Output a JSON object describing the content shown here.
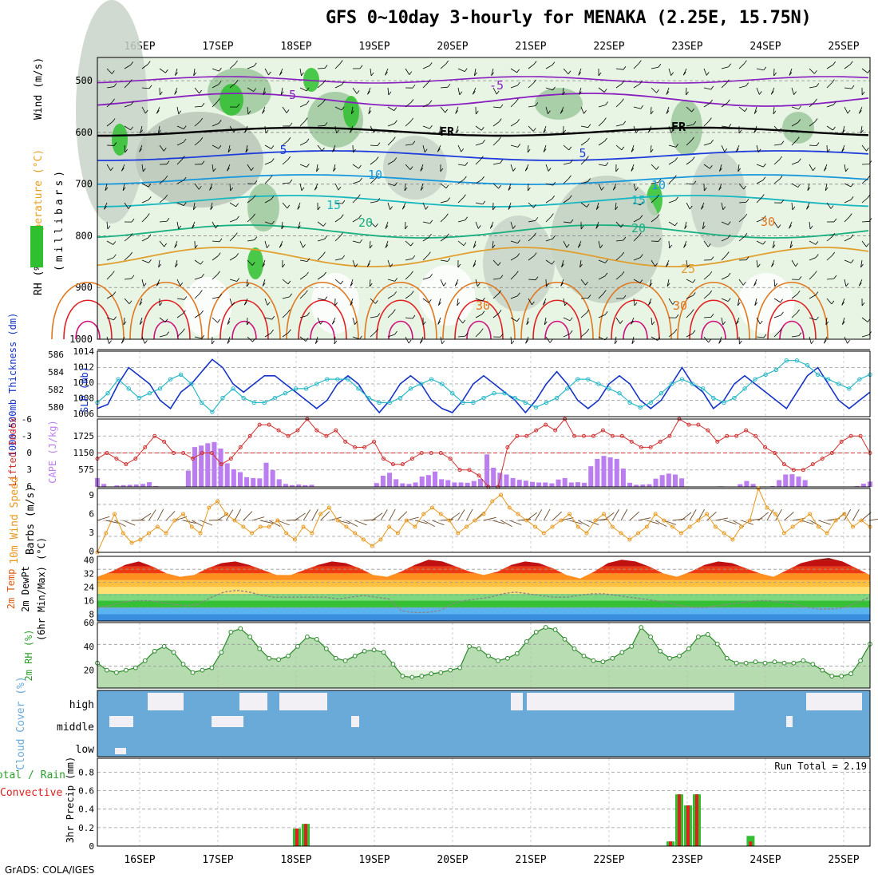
{
  "title": "GFS 0~10day 3-hourly for MENAKA (2.25E, 15.75N)",
  "credit": "GrADS: COLA/IGES",
  "colors": {
    "rh_green": "#2ec02e",
    "rh_light": "#e8f4e4",
    "grey_band": "#b8c6b8",
    "cloud_blue": "#6aaad8",
    "cloud_white": "#f2f0f4",
    "cape_purple": "#bb7ef0",
    "slp_blue": "#1432c8",
    "thick_cyan": "#28b8c8",
    "li_red": "#d03030",
    "wind_orange": "#e8981c",
    "precip_green": "#30c030",
    "precip_red": "#e02020",
    "rh2m_green": "#70b870"
  },
  "chart_data": {
    "type": "meteogram",
    "x_dates": [
      "16SEP",
      "17SEP",
      "18SEP",
      "19SEP",
      "20SEP",
      "21SEP",
      "22SEP",
      "23SEP",
      "24SEP",
      "25SEP"
    ],
    "panels": [
      {
        "name": "cross-section",
        "ylabels": [
          "Wind (m/s)",
          "Temperature (°C)",
          "RH (%)"
        ],
        "yaxis_label": "(millibars)",
        "yticks": [
          500,
          600,
          700,
          800,
          900,
          1000
        ],
        "contour_labels": [
          "-5",
          "-5",
          "FR",
          "FR",
          "5",
          "5",
          "10",
          "10",
          "15",
          "15",
          "20",
          "20",
          "25",
          "30",
          "30",
          "30"
        ]
      },
      {
        "name": "thickness-slp",
        "ylabels": [
          "1000-500mb Thickness (dm)",
          "SLP (mb)"
        ],
        "thickness_ticks": [
          "586",
          "584",
          "582",
          "580"
        ],
        "slp_ticks": [
          "1014",
          "1012",
          "1010",
          "1008",
          "1006"
        ],
        "slp": [
          1007,
          1007.5,
          1010,
          1012,
          1011,
          1010,
          1008,
          1007,
          1009,
          1010,
          1011.5,
          1013,
          1012,
          1010,
          1009,
          1010,
          1011,
          1011,
          1010,
          1009,
          1008,
          1007,
          1008,
          1010,
          1011,
          1010,
          1008,
          1006.5,
          1008,
          1010,
          1011,
          1010,
          1008,
          1007,
          1006.5,
          1008,
          1010,
          1011,
          1010,
          1009,
          1008,
          1006.5,
          1008,
          1010,
          1011.5,
          1010,
          1008,
          1007,
          1008,
          1010,
          1011,
          1010,
          1008,
          1007,
          1008,
          1010,
          1012,
          1010,
          1009,
          1007,
          1008,
          1010,
          1011,
          1010,
          1009,
          1008,
          1007,
          1009,
          1011,
          1012,
          1010,
          1008,
          1007,
          1008,
          1009
        ],
        "thickness": [
          580.5,
          581.5,
          583,
          582,
          581,
          581.5,
          582,
          583,
          583.5,
          582.5,
          580.5,
          579.5,
          581,
          582,
          581,
          580.5,
          580.5,
          581,
          581.5,
          582,
          582,
          582.5,
          583,
          583,
          583,
          582,
          581,
          580.5,
          580.5,
          581,
          582,
          582.5,
          583,
          582.5,
          581.5,
          580.5,
          580.5,
          581,
          581.5,
          581.5,
          581,
          580.5,
          580,
          580.5,
          581,
          582,
          583,
          583,
          582.5,
          582,
          581.5,
          580.5,
          580,
          580.5,
          581.5,
          582.5,
          583,
          582.5,
          582,
          581,
          580.5,
          581,
          582,
          583,
          583.5,
          584,
          585,
          585,
          584.5,
          583.5,
          583,
          582.5,
          582,
          583,
          583.5
        ]
      },
      {
        "name": "cape-li",
        "ylabels": [
          "Lifted Index",
          "CAPE (J/kg)"
        ],
        "li_ticks": [
          "-6",
          "-3",
          "0",
          "3",
          "6"
        ],
        "cape_ticks": [
          "1725",
          "1150",
          "575"
        ],
        "cape": [
          300,
          100,
          0,
          50,
          60,
          70,
          80,
          100,
          160,
          30,
          0,
          0,
          0,
          0,
          550,
          1350,
          1400,
          1480,
          1520,
          1300,
          800,
          600,
          500,
          330,
          300,
          290,
          820,
          570,
          260,
          100,
          60,
          80,
          60,
          70,
          0,
          0,
          0,
          0,
          0,
          0,
          0,
          0,
          0,
          130,
          380,
          480,
          260,
          120,
          100,
          150,
          350,
          400,
          520,
          260,
          230,
          150,
          150,
          140,
          200,
          270,
          1100,
          650,
          480,
          420,
          300,
          240,
          210,
          170,
          150,
          150,
          120,
          250,
          300,
          150,
          160,
          140,
          700,
          950,
          1050,
          1000,
          950,
          620,
          140,
          70,
          80,
          90,
          280,
          400,
          450,
          420,
          290,
          10,
          0,
          0,
          0,
          0,
          20,
          0,
          10,
          90,
          200,
          100,
          0,
          0,
          30,
          230,
          420,
          430,
          350,
          230,
          0,
          0,
          0,
          0,
          0,
          0,
          0,
          30,
          110,
          180
        ],
        "li": [
          1,
          0,
          1,
          2,
          1,
          -1,
          -3,
          -2,
          0,
          0,
          1,
          0,
          0,
          2,
          1,
          -1,
          -3,
          -5,
          -5,
          -4,
          -3,
          -4,
          -6,
          -4,
          -3,
          -4,
          -2,
          -1,
          -1,
          -2,
          1,
          2,
          2,
          1,
          0,
          0,
          0,
          1,
          3,
          3,
          4,
          6,
          6,
          -1,
          -3,
          -3,
          -4,
          -5,
          -4,
          -6,
          -3,
          -3,
          -3,
          -4,
          -3,
          -3,
          -2,
          -1,
          -1,
          -2,
          -3,
          -6,
          -5,
          -5,
          -4,
          -2,
          -3,
          -3,
          -4,
          -3,
          -1,
          0,
          2,
          3,
          3,
          2,
          1,
          0,
          -2,
          -3,
          -3,
          0
        ]
      },
      {
        "name": "wind10m",
        "ylabels": [
          "10m Wind Speed",
          "Barbs (m/s)"
        ],
        "yticks": [
          "9",
          "6",
          "3",
          "0"
        ],
        "speed": [
          0,
          3,
          6,
          3,
          1.5,
          2,
          3,
          4,
          3,
          5,
          6,
          4,
          3,
          7,
          8,
          6,
          5,
          4,
          3,
          4,
          4,
          5,
          3,
          2,
          4,
          3,
          6,
          7,
          5,
          4,
          3,
          2,
          1,
          2,
          4,
          3,
          5,
          4,
          6,
          7,
          6,
          5,
          3,
          4,
          5,
          6,
          8,
          9,
          7,
          6,
          5,
          4,
          3,
          4,
          5,
          6,
          4,
          3,
          5,
          6,
          4,
          3,
          2,
          3,
          4,
          6,
          5,
          4,
          3,
          4,
          5,
          6,
          4,
          3,
          2,
          4,
          5,
          10,
          7,
          6,
          3,
          4,
          5,
          6,
          4,
          3,
          5,
          6,
          4,
          5,
          4
        ]
      },
      {
        "name": "temp2m",
        "ylabels": [
          "2m Temp",
          "2m DewPt",
          "(6hr Min/Max) (°C)"
        ],
        "yticks": [
          "40",
          "32",
          "24",
          "16",
          "8"
        ],
        "temp": [
          30,
          33,
          37,
          39,
          36,
          32,
          30,
          31,
          35,
          38,
          39,
          37,
          34,
          31,
          31,
          34,
          37,
          39,
          38,
          35,
          31,
          30,
          33,
          37,
          40,
          39,
          36,
          33,
          31,
          33,
          37,
          39,
          38,
          35,
          31,
          29,
          33,
          38,
          40,
          39,
          36,
          32,
          30,
          33,
          37,
          39,
          38,
          35,
          32,
          30,
          34,
          38,
          40,
          41,
          39,
          35,
          31
        ],
        "dewpt": [
          12,
          13,
          15,
          16,
          16,
          15,
          14,
          13,
          14,
          18,
          21,
          22,
          21,
          19,
          18,
          18,
          18,
          18,
          18,
          17,
          18,
          19,
          18,
          17,
          10,
          9,
          9,
          10,
          14,
          16,
          17,
          18,
          20,
          21,
          20,
          19,
          18,
          18,
          19,
          20,
          20,
          19,
          18,
          17,
          16,
          15,
          13,
          12,
          12,
          13,
          14,
          15,
          16,
          16,
          15,
          14,
          12,
          11,
          11,
          12,
          15,
          18
        ]
      },
      {
        "name": "rh2m",
        "ylabels": [
          "2m RH (%)"
        ],
        "yticks": [
          "60",
          "40",
          "20"
        ],
        "rh": [
          26,
          20,
          18,
          20,
          22,
          28,
          36,
          40,
          35,
          25,
          18,
          20,
          22,
          35,
          52,
          55,
          48,
          38,
          30,
          29,
          32,
          40,
          48,
          46,
          38,
          30,
          28,
          32,
          36,
          37,
          35,
          25,
          15,
          14,
          15,
          17,
          18,
          20,
          22,
          40,
          38,
          32,
          28,
          30,
          34,
          44,
          52,
          56,
          54,
          46,
          38,
          32,
          28,
          27,
          30,
          35,
          40,
          56,
          48,
          36,
          30,
          32,
          38,
          48,
          50,
          42,
          30,
          26,
          26,
          27,
          26,
          27,
          26,
          26,
          28,
          25,
          20,
          15,
          15,
          17,
          28,
          42
        ]
      },
      {
        "name": "cloud",
        "ylabels": [
          "Cloud Cover (%)"
        ],
        "levels": [
          "high",
          "middle",
          "low"
        ]
      },
      {
        "name": "precip",
        "ylabels": [
          "Total / Rain",
          "Convective",
          "3hr Precip (mm)"
        ],
        "yticks": [
          "0.8",
          "0.6",
          "0.4",
          "0.2",
          "0"
        ],
        "run_total": "Run Total = 2.19",
        "bars": [
          {
            "date_index": 2.0,
            "offset": 0,
            "total": 0.19,
            "conv": 0.19
          },
          {
            "date_index": 2.0,
            "offset": 1,
            "total": 0.24,
            "conv": 0.24
          },
          {
            "date_index": 7.0,
            "offset": -2,
            "total": 0.05,
            "conv": 0.05
          },
          {
            "date_index": 7.0,
            "offset": -1,
            "total": 0.56,
            "conv": 0.56
          },
          {
            "date_index": 7.0,
            "offset": 0,
            "total": 0.44,
            "conv": 0.44
          },
          {
            "date_index": 7.0,
            "offset": 1,
            "total": 0.56,
            "conv": 0.56
          },
          {
            "date_index": 7.8,
            "offset": 0,
            "total": 0.11,
            "conv": 0.05
          }
        ]
      }
    ]
  }
}
